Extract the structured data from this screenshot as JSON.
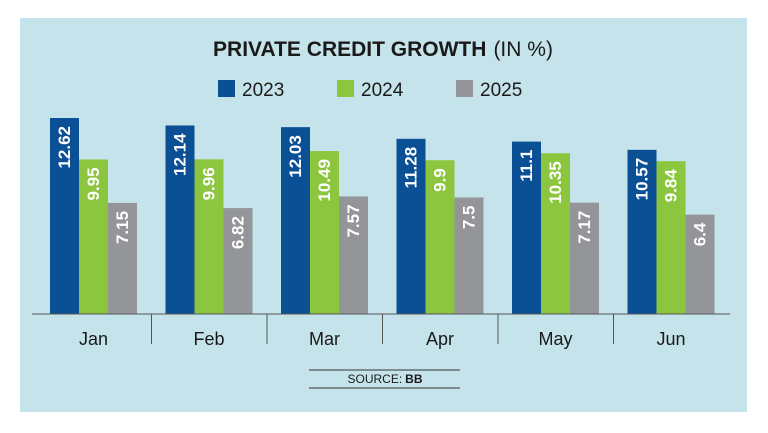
{
  "chart_data": {
    "type": "bar",
    "title": "PRIVATE CREDIT GROWTH",
    "title_unit": "(IN %)",
    "categories": [
      "Jan",
      "Feb",
      "Mar",
      "Apr",
      "May",
      "Jun"
    ],
    "series": [
      {
        "name": "2023",
        "color": "#0b4f95",
        "values": [
          12.62,
          12.14,
          12.03,
          11.28,
          11.1,
          10.57
        ],
        "labels": [
          "12.62",
          "12.14",
          "12.03",
          "11.28",
          "11.1",
          "10.57"
        ]
      },
      {
        "name": "2024",
        "color": "#8cc63f",
        "values": [
          9.95,
          9.96,
          10.49,
          9.9,
          10.35,
          9.84
        ],
        "labels": [
          "9.95",
          "9.96",
          "10.49",
          "9.9",
          "10.35",
          "9.84"
        ]
      },
      {
        "name": "2025",
        "color": "#939598",
        "values": [
          7.15,
          6.82,
          7.57,
          7.5,
          7.17,
          6.4
        ],
        "labels": [
          "7.15",
          "6.82",
          "7.57",
          "7.5",
          "7.17",
          "6.4"
        ]
      }
    ],
    "ylim": [
      0,
      13
    ],
    "xlabel": "",
    "ylabel": "",
    "grid": false,
    "legend": "top-center",
    "source_label": "SOURCE:",
    "source_value": "BB"
  }
}
